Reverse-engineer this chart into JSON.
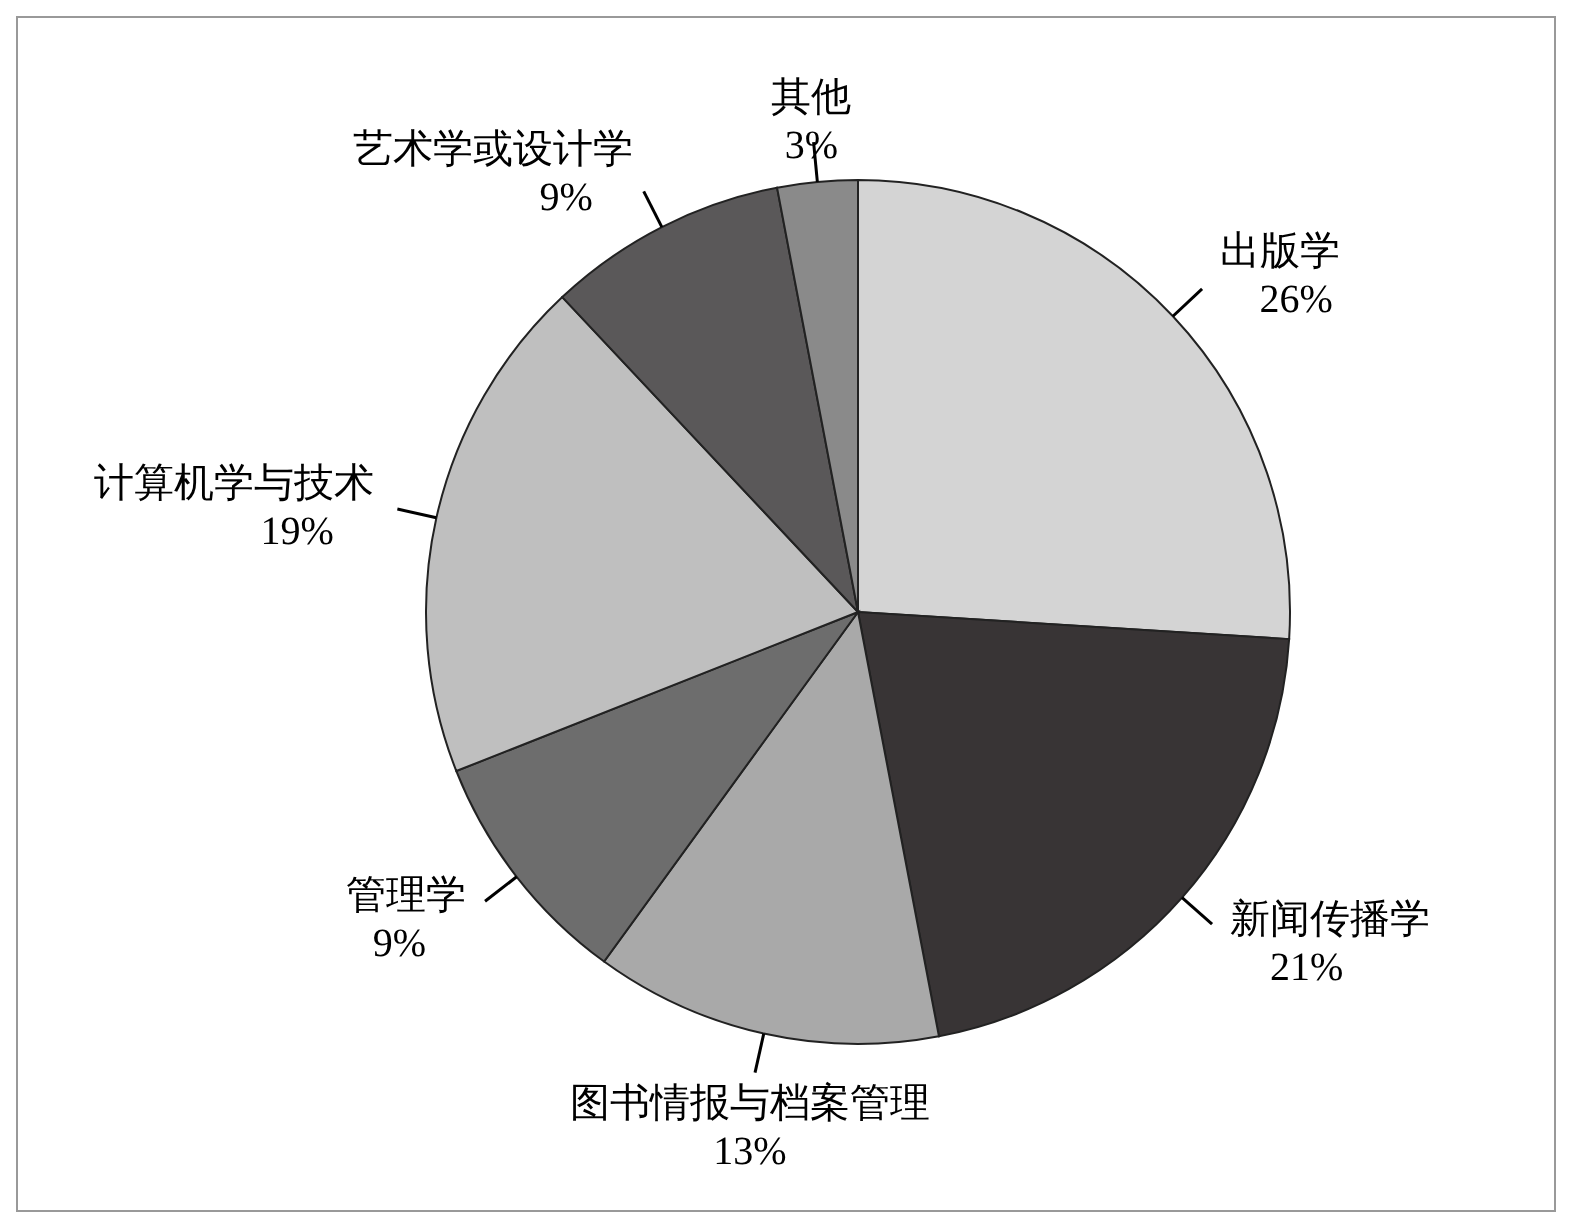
{
  "chart_data": {
    "type": "pie",
    "categories": [
      "出版学",
      "新闻传播学",
      "图书情报与档案管理",
      "管理学",
      "计算机学与技术",
      "艺术学或设计学",
      "其他"
    ],
    "values": [
      26,
      21,
      13,
      9,
      19,
      9,
      3
    ],
    "value_labels": [
      "26%",
      "21%",
      "13%",
      "9%",
      "19%",
      "9%",
      "3%"
    ],
    "colors": [
      "#d4d4d4",
      "#383435",
      "#a9a9a9",
      "#6d6d6d",
      "#bfbfbf",
      "#5a5859",
      "#8a8a8a"
    ],
    "legend": false
  }
}
